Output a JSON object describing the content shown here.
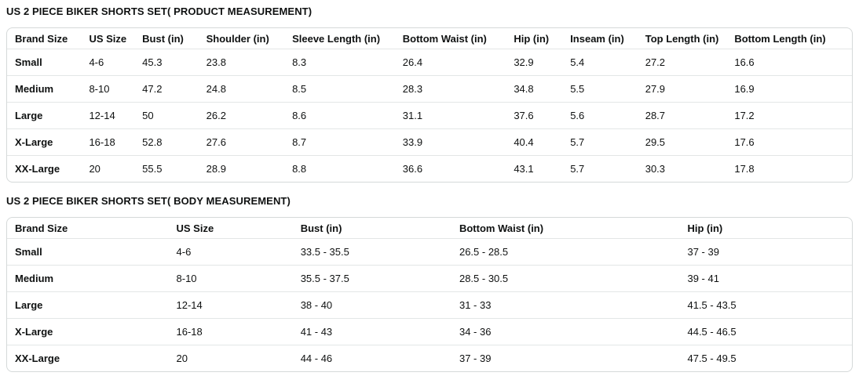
{
  "tables": [
    {
      "title": "US 2 PIECE BIKER SHORTS SET( PRODUCT MEASUREMENT)",
      "columns": [
        "Brand Size",
        "US Size",
        "Bust (in)",
        "Shoulder (in)",
        "Sleeve Length (in)",
        "Bottom Waist (in)",
        "Hip (in)",
        "Inseam (in)",
        "Top Length (in)",
        "Bottom Length (in)"
      ],
      "rows": [
        [
          "Small",
          "4-6",
          "45.3",
          "23.8",
          "8.3",
          "26.4",
          "32.9",
          "5.4",
          "27.2",
          "16.6"
        ],
        [
          "Medium",
          "8-10",
          "47.2",
          "24.8",
          "8.5",
          "28.3",
          "34.8",
          "5.5",
          "27.9",
          "16.9"
        ],
        [
          "Large",
          "12-14",
          "50",
          "26.2",
          "8.6",
          "31.1",
          "37.6",
          "5.6",
          "28.7",
          "17.2"
        ],
        [
          "X-Large",
          "16-18",
          "52.8",
          "27.6",
          "8.7",
          "33.9",
          "40.4",
          "5.7",
          "29.5",
          "17.6"
        ],
        [
          "XX-Large",
          "20",
          "55.5",
          "28.9",
          "8.8",
          "36.6",
          "43.1",
          "5.7",
          "30.3",
          "17.8"
        ]
      ]
    },
    {
      "title": "US 2 PIECE BIKER SHORTS SET( BODY MEASUREMENT)",
      "columns": [
        "Brand Size",
        "US Size",
        "Bust (in)",
        "Bottom Waist (in)",
        "Hip (in)"
      ],
      "rows": [
        [
          "Small",
          "4-6",
          "33.5 - 35.5",
          "26.5 - 28.5",
          "37 - 39"
        ],
        [
          "Medium",
          "8-10",
          "35.5 - 37.5",
          "28.5 - 30.5",
          "39 - 41"
        ],
        [
          "Large",
          "12-14",
          "38 - 40",
          "31 - 33",
          "41.5 - 43.5"
        ],
        [
          "X-Large",
          "16-18",
          "41 - 43",
          "34 - 36",
          "44.5 - 46.5"
        ],
        [
          "XX-Large",
          "20",
          "44 - 46",
          "37 - 39",
          "47.5 - 49.5"
        ]
      ]
    }
  ],
  "colors": {
    "text": "#0F1111",
    "table_border": "#D5D9D9",
    "row_divider": "#E3E6E6",
    "background": "#FFFFFF"
  }
}
